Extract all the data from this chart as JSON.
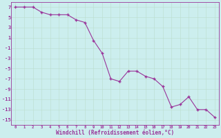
{
  "x": [
    0,
    1,
    2,
    3,
    4,
    5,
    6,
    7,
    8,
    9,
    10,
    11,
    12,
    13,
    14,
    15,
    16,
    17,
    18,
    19,
    20,
    21,
    22,
    23
  ],
  "y": [
    7,
    7,
    7,
    6,
    5.5,
    5.5,
    5.5,
    4.5,
    4.0,
    0.5,
    -2.0,
    -7.0,
    -7.5,
    -5.5,
    -5.5,
    -6.5,
    -7.0,
    -8.5,
    -12.5,
    -12.0,
    -10.5,
    -13.0,
    -13.0,
    -14.5
  ],
  "line_color": "#993399",
  "marker_color": "#993399",
  "bg_color": "#cceeee",
  "grid_color": "#bbddcc",
  "xlabel": "Windchill (Refroidissement éolien,°C)",
  "xlim": [
    -0.5,
    23.5
  ],
  "ylim": [
    -16,
    8
  ],
  "xticks": [
    0,
    1,
    2,
    3,
    4,
    5,
    6,
    7,
    8,
    9,
    10,
    11,
    12,
    13,
    14,
    15,
    16,
    17,
    18,
    19,
    20,
    21,
    22,
    23
  ],
  "yticks": [
    7,
    5,
    3,
    1,
    -1,
    -3,
    -5,
    -7,
    -9,
    -11,
    -13,
    -15
  ]
}
